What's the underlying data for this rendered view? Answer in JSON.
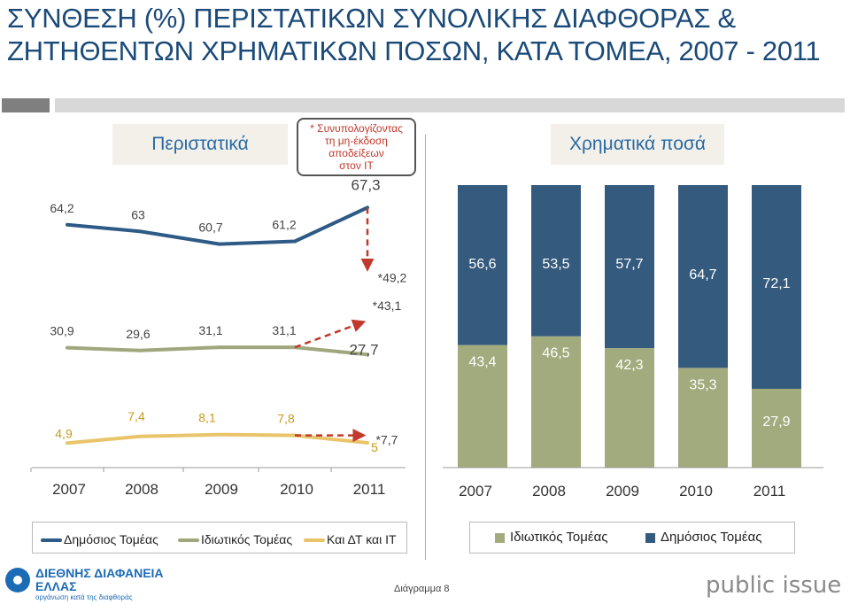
{
  "title_line1": "ΣΥΝΘΕΣΗ (%) ΠΕΡΙΣΤΑΤΙΚΩΝ ΣΥΝΟΛΙΚΗΣ ΔΙΑΦΘΟΡΑΣ &",
  "title_line2": "ΖΗΤΗΘΕΝΤΩΝ ΧΡΗΜΑΤΙΚΩΝ ΠΟΣΩΝ, ΚΑΤΑ ΤΟΜΕΑ, 2007 - 2011",
  "left_header": "Περιστατικά",
  "right_header": "Χρηματικά ποσά",
  "note_lines": [
    "* Συνυπολογίζοντας",
    "τη μη-έκδοση",
    "αποδείξεων",
    "στον ΙΤ"
  ],
  "footer": {
    "logo_name_line1": "ΔΙΕΘΝΗΣ ΔΙΑΦΑΝΕΙΑ",
    "logo_name_line2": "ΕΛΛΑΣ",
    "logo_tagline": "οργάνωση κατά της διαφθοράς",
    "caption": "Διάγραμμα 8",
    "brand": "public issue"
  },
  "colors": {
    "public": "#2e5a86",
    "private": "#a0a77d",
    "it": "#e9c46a",
    "dashed": "#c0392b",
    "bar_public": "#345a7e",
    "bar_private": "#a1ab7d"
  },
  "chart_data": [
    {
      "type": "line",
      "categories": [
        "2007",
        "2008",
        "2009",
        "2010",
        "2011"
      ],
      "series": [
        {
          "name": "Δημόσιος Τομέας",
          "values": [
            64.2,
            63,
            60.7,
            61.2,
            67.3
          ],
          "labels": [
            "64,2",
            "63",
            "60,7",
            "61,2",
            "67,3"
          ],
          "alt_value": 49.2,
          "alt_label": "*49,2"
        },
        {
          "name": "Ιδιωτικός Τομέας",
          "values": [
            30.9,
            29.6,
            31.1,
            31.1,
            27.7
          ],
          "labels": [
            "30,9",
            "29,6",
            "31,1",
            "31,1",
            "27,7"
          ],
          "alt_value": 43.1,
          "alt_label": "*43,1"
        },
        {
          "name": "Και ΔΤ και ΙΤ",
          "values": [
            4.9,
            7.4,
            8.1,
            7.8,
            5
          ],
          "labels": [
            "4,9",
            "7,4",
            "8,1",
            "7,8",
            "5"
          ],
          "alt_value": 7.7,
          "alt_label": "*7,7"
        }
      ]
    },
    {
      "type": "bar",
      "stacked": true,
      "categories": [
        "2007",
        "2008",
        "2009",
        "2010",
        "2011"
      ],
      "series": [
        {
          "name": "Ιδιωτικός Τομέας",
          "values": [
            43.4,
            46.5,
            42.3,
            35.3,
            27.9
          ],
          "labels": [
            "43,4",
            "46,5",
            "42,3",
            "35,3",
            "27,9"
          ]
        },
        {
          "name": "Δημόσιος Τομέας",
          "values": [
            56.6,
            53.5,
            57.7,
            64.7,
            72.1
          ],
          "labels": [
            "56,6",
            "53,5",
            "57,7",
            "64,7",
            "72,1"
          ]
        }
      ],
      "ylim": [
        0,
        100
      ]
    }
  ]
}
